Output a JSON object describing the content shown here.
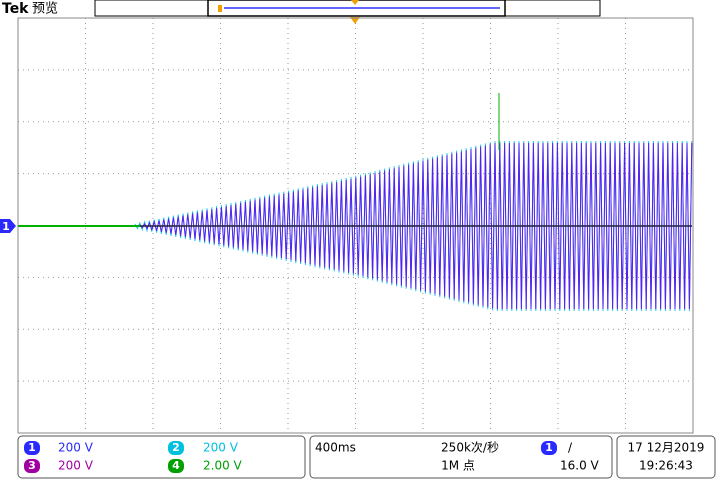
{
  "header": {
    "brand": "Tek",
    "mode": "预览"
  },
  "channels": [
    {
      "number": "1",
      "scale": "200 V"
    },
    {
      "number": "2",
      "scale": "200 V"
    },
    {
      "number": "3",
      "scale": "200 V"
    },
    {
      "number": "4",
      "scale": "2.00 V"
    }
  ],
  "timebase": "400ms",
  "sample_rate": "250k次/秒",
  "record_length": "1M 点",
  "trigger": {
    "source": "1",
    "slope": "/",
    "level": "16.0 V"
  },
  "date": "17 12月2019",
  "time": "19:26:43",
  "ground_marker": "1"
}
